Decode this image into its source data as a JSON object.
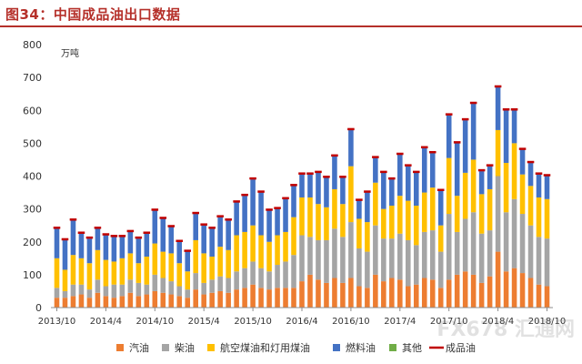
{
  "figure": {
    "title": "图34：中国成品油出口数据",
    "watermark": "FX678 汇通网"
  },
  "colors": {
    "title": "#b5302a",
    "gasoline": "#ed7d31",
    "diesel": "#a5a5a5",
    "jet_kerosene": "#ffc000",
    "fuel_oil": "#4472c4",
    "other": "#70ad47",
    "total": "#c00000"
  },
  "chart_data": {
    "type": "bar",
    "stacked": true,
    "unit_label": "万吨",
    "ylim": [
      0,
      800
    ],
    "yticks": [
      0,
      100,
      200,
      300,
      400,
      500,
      600,
      700,
      800
    ],
    "x_tick_labels": [
      "2013/10",
      "2014/4",
      "2014/10",
      "2015/4",
      "2015/10",
      "2016/4",
      "2016/10",
      "2017/4",
      "2017/10",
      "2018/4",
      "2018/10"
    ],
    "legend": [
      "汽油",
      "柴油",
      "航空煤油和灯用煤油",
      "燃料油",
      "其他",
      "成品油"
    ],
    "legend_position": "bottom",
    "grid": false,
    "categories": [
      "2013/10",
      "2013/11",
      "2013/12",
      "2014/1",
      "2014/2",
      "2014/3",
      "2014/4",
      "2014/5",
      "2014/6",
      "2014/7",
      "2014/8",
      "2014/9",
      "2014/10",
      "2014/11",
      "2014/12",
      "2015/1",
      "2015/2",
      "2015/3",
      "2015/4",
      "2015/5",
      "2015/6",
      "2015/7",
      "2015/8",
      "2015/9",
      "2015/10",
      "2015/11",
      "2015/12",
      "2016/1",
      "2016/2",
      "2016/3",
      "2016/4",
      "2016/5",
      "2016/6",
      "2016/7",
      "2016/8",
      "2016/9",
      "2016/10",
      "2016/11",
      "2016/12",
      "2017/1",
      "2017/2",
      "2017/3",
      "2017/4",
      "2017/5",
      "2017/6",
      "2017/7",
      "2017/8",
      "2017/9",
      "2017/10",
      "2017/11",
      "2017/12",
      "2018/1",
      "2018/2",
      "2018/3",
      "2018/4",
      "2018/5",
      "2018/6",
      "2018/7",
      "2018/8",
      "2018/9",
      "2018/10"
    ],
    "series": [
      {
        "name": "汽油",
        "values": [
          30,
          30,
          35,
          40,
          30,
          45,
          35,
          30,
          35,
          45,
          35,
          40,
          50,
          45,
          40,
          35,
          30,
          55,
          40,
          45,
          50,
          45,
          55,
          60,
          70,
          60,
          55,
          60,
          60,
          60,
          80,
          100,
          85,
          75,
          90,
          75,
          90,
          65,
          60,
          100,
          80,
          90,
          85,
          65,
          70,
          90,
          85,
          60,
          85,
          100,
          110,
          100,
          75,
          95,
          170,
          110,
          120,
          105,
          90,
          70,
          65
        ]
      },
      {
        "name": "柴油",
        "values": [
          30,
          20,
          35,
          30,
          25,
          40,
          30,
          40,
          35,
          40,
          40,
          30,
          50,
          45,
          40,
          30,
          25,
          50,
          35,
          40,
          45,
          45,
          55,
          60,
          70,
          60,
          55,
          70,
          80,
          100,
          140,
          115,
          120,
          130,
          150,
          140,
          170,
          115,
          110,
          150,
          130,
          120,
          140,
          140,
          120,
          140,
          150,
          110,
          200,
          130,
          160,
          190,
          150,
          140,
          230,
          180,
          210,
          180,
          160,
          145,
          145
        ]
      },
      {
        "name": "航空煤油和灯用煤油",
        "values": [
          90,
          65,
          90,
          80,
          80,
          90,
          80,
          70,
          80,
          80,
          60,
          85,
          95,
          80,
          85,
          70,
          55,
          100,
          90,
          70,
          90,
          85,
          110,
          110,
          110,
          100,
          90,
          90,
          90,
          115,
          115,
          120,
          110,
          100,
          120,
          100,
          170,
          90,
          90,
          130,
          90,
          100,
          115,
          120,
          120,
          120,
          130,
          80,
          170,
          110,
          140,
          160,
          120,
          125,
          140,
          150,
          170,
          120,
          120,
          120,
          120
        ]
      },
      {
        "name": "燃料油",
        "values": [
          90,
          90,
          105,
          75,
          75,
          65,
          75,
          75,
          65,
          65,
          75,
          70,
          100,
          100,
          80,
          65,
          60,
          80,
          85,
          85,
          90,
          90,
          100,
          110,
          140,
          130,
          95,
          80,
          100,
          95,
          70,
          70,
          95,
          90,
          100,
          80,
          110,
          55,
          90,
          75,
          110,
          80,
          125,
          105,
          100,
          135,
          105,
          105,
          130,
          160,
          160,
          170,
          70,
          70,
          130,
          160,
          100,
          75,
          70,
          70,
          70
        ]
      },
      {
        "name": "其他",
        "values": [
          0,
          0,
          0,
          0,
          0,
          0,
          0,
          0,
          0,
          0,
          0,
          0,
          0,
          0,
          0,
          0,
          0,
          0,
          0,
          0,
          0,
          0,
          0,
          0,
          0,
          0,
          0,
          0,
          0,
          0,
          0,
          0,
          0,
          0,
          0,
          0,
          0,
          0,
          0,
          0,
          0,
          0,
          0,
          0,
          0,
          0,
          0,
          0,
          0,
          0,
          0,
          0,
          0,
          0,
          0,
          0,
          0,
          0,
          0,
          0,
          0
        ]
      }
    ],
    "total": {
      "name": "成品油",
      "values": [
        240,
        205,
        265,
        225,
        210,
        240,
        220,
        215,
        215,
        230,
        210,
        225,
        295,
        270,
        245,
        200,
        170,
        285,
        250,
        240,
        275,
        265,
        320,
        340,
        390,
        350,
        295,
        300,
        330,
        370,
        405,
        405,
        410,
        395,
        460,
        395,
        540,
        325,
        350,
        455,
        410,
        390,
        465,
        430,
        410,
        485,
        470,
        355,
        585,
        500,
        570,
        620,
        415,
        430,
        670,
        600,
        600,
        480,
        440,
        405,
        400
      ]
    }
  }
}
